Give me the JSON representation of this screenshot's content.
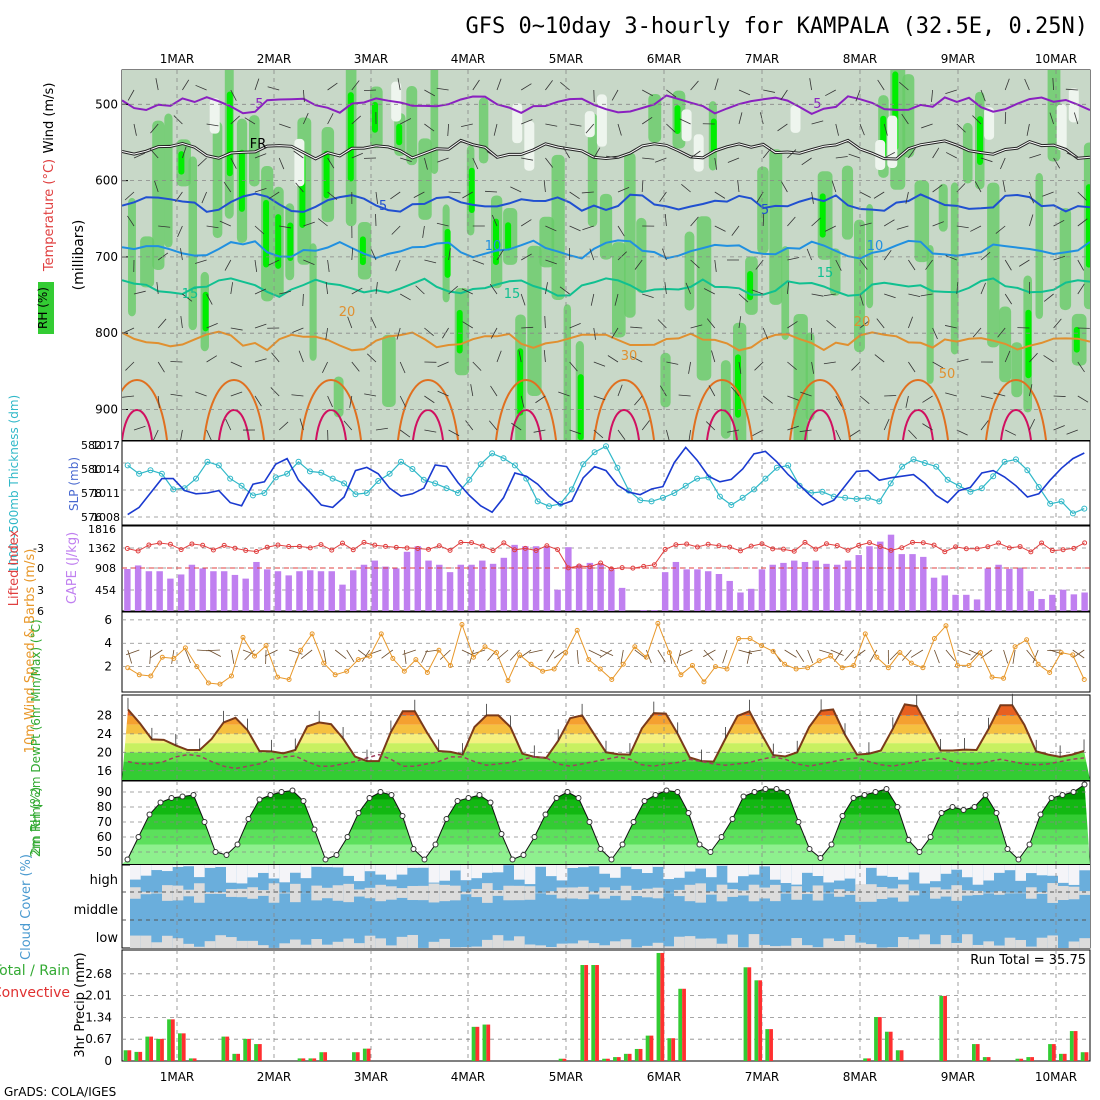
{
  "title": "GFS 0~10day 3-hourly for KAMPALA (32.5E, 0.25N)",
  "footer": "GrADS: COLA/IGES",
  "dates": [
    "1MAR",
    "2MAR",
    "3MAR",
    "4MAR",
    "5MAR",
    "6MAR",
    "7MAR",
    "8MAR",
    "9MAR",
    "10MAR"
  ],
  "colors": {
    "rh_green": "#33cc33",
    "temp_orange": "#f5a030",
    "cape_purple": "#c080f0",
    "cloud_blue": "#6aaedc",
    "rain_red": "#ff3030",
    "rain_green": "#33cc33"
  },
  "chart_data": [
    {
      "type": "heatmap",
      "panel": "upper-air",
      "ylabel_left": "Wind (m/s)",
      "ylabel_temp": "Temperature (°C)",
      "ylabel_rh": "RH (%)",
      "ylabel_axis": "(millibars)",
      "y_ticks": [
        500,
        600,
        700,
        800,
        900
      ],
      "ylim": [
        940,
        455
      ],
      "freezing_label": "FR",
      "isotherms": [
        {
          "label": "-5",
          "color": "#8a20c0",
          "level": 500
        },
        {
          "label": "FR",
          "color": "#222222",
          "level": 560
        },
        {
          "label": "5",
          "color": "#2050d0",
          "level": 630
        },
        {
          "label": "10",
          "color": "#2090e0",
          "level": 690
        },
        {
          "label": "15",
          "color": "#10c090",
          "level": 740
        },
        {
          "label": "20",
          "color": "#e09030",
          "level": 810
        }
      ],
      "contour_labels": [
        "-5",
        "5",
        "10",
        "15",
        "20",
        "30",
        "50"
      ]
    },
    {
      "type": "line",
      "panel": "thickness-slp",
      "ylabel_left": "1000~500mb Thickness (dm)",
      "ylabel_right": "SLP (mb)",
      "left_ticks": [
        576,
        578,
        580,
        582
      ],
      "right_ticks": [
        1008,
        1011,
        1014,
        1017
      ],
      "series": [
        {
          "name": "Thickness",
          "color": "#30b8c8",
          "values": [
            580.3,
            579.6,
            579.9,
            579.6,
            578.3,
            578.4,
            579.2,
            580.6,
            580.3,
            579.2,
            578.6,
            577.8,
            578.0,
            579.3,
            579.6,
            580.6,
            579.8,
            579.7,
            579.2,
            578.8,
            577.9,
            578.0,
            579.0,
            579.6,
            580.6,
            580.0,
            579.1,
            578.8,
            578.4,
            578.0,
            579.1,
            580.4,
            581.3,
            580.9,
            580.3,
            579.2,
            577.3,
            576.9,
            577.1,
            578.3,
            580.4,
            581.4,
            581.9,
            580.1,
            578.2,
            577.4,
            577.3,
            577.6,
            578.0,
            578.6,
            579.2,
            579.3,
            577.7,
            577.0,
            577.6,
            578.3,
            579.2,
            580.1,
            580.3,
            578.6,
            578.0,
            578.1,
            577.7,
            577.6,
            577.5,
            577.6,
            577.3,
            578.8,
            580.2,
            580.8,
            580.5,
            580.2,
            579.1,
            578.6,
            578.1,
            578.4,
            579.4,
            580.6,
            580.8,
            579.9,
            578.5,
            577.1,
            577.3,
            576.3,
            576.7
          ]
        },
        {
          "name": "SLP",
          "color": "#1a3ad0",
          "values": [
            1008.3,
            1009.2,
            1011.0,
            1012.8,
            1012.8,
            1011.3,
            1010.9,
            1011.0,
            1011.3,
            1009.8,
            1009.4,
            1012.1,
            1012.4,
            1014.6,
            1015.3,
            1012.6,
            1011.1,
            1009.5,
            1009.2,
            1010.5,
            1013.8,
            1014.2,
            1013.4,
            1011.6,
            1010.6,
            1010.9,
            1011.6,
            1014.5,
            1014.3,
            1012.3,
            1010.7,
            1009.4,
            1008.6,
            1010.4,
            1013.5,
            1013.1,
            1012.1,
            1010.6,
            1009.5,
            1010.0,
            1012.9,
            1014.3,
            1013.8,
            1012.0,
            1011.1,
            1010.8,
            1011.5,
            1011.8,
            1014.8,
            1016.7,
            1015.1,
            1013.1,
            1012.4,
            1012.7,
            1014.0,
            1015.9,
            1016.2,
            1014.9,
            1013.3,
            1012.0,
            1010.6,
            1009.5,
            1010.1,
            1011.9,
            1013.7,
            1013.8,
            1012.6,
            1012.9,
            1013.1,
            1013.3,
            1012.2,
            1010.7,
            1009.8,
            1011.3,
            1011.7,
            1013.5,
            1013.8,
            1013.0,
            1011.9,
            1010.5,
            1010.9,
            1012.6,
            1014.1,
            1015.3,
            1016.0
          ]
        }
      ]
    },
    {
      "type": "bar",
      "panel": "cape-lifted-index",
      "ylabel_left": "Lifted Index",
      "ylabel_right": "CAPE (J/kg)",
      "left_ticks": [
        "-3",
        "0",
        "3",
        "6"
      ],
      "right_ticks": [
        454,
        908,
        1362,
        1816
      ],
      "cape_values": [
        908,
        985,
        860,
        860,
        700,
        790,
        1000,
        920,
        860,
        860,
        780,
        700,
        1060,
        900,
        860,
        770,
        860,
        880,
        860,
        860,
        570,
        880,
        1000,
        1090,
        960,
        920,
        1280,
        1400,
        1090,
        1000,
        840,
        1000,
        1000,
        1090,
        1020,
        1150,
        1430,
        1400,
        1400,
        1400,
        460,
        1380,
        1000,
        1040,
        1020,
        900,
        500,
        0,
        20,
        20,
        840,
        1060,
        900,
        900,
        860,
        800,
        650,
        400,
        480,
        900,
        1000,
        1040,
        1090,
        1060,
        1090,
        1020,
        1000,
        1090,
        1210,
        1400,
        1500,
        1650,
        1230,
        1230,
        1170,
        720,
        770,
        350,
        350,
        250,
        920,
        1000,
        910,
        920,
        430,
        260,
        350,
        460,
        360,
        400
      ]
    },
    {
      "type": "line",
      "panel": "10m-wind",
      "ylabel": "10m Wind Speed & Barbs (m/s)",
      "y_ticks": [
        2,
        4,
        6
      ],
      "ylim": [
        0,
        6.5
      ],
      "series": [
        {
          "name": "Speed",
          "color": "#e8982a",
          "values": [
            1.9,
            1.3,
            1.2,
            2.8,
            2.7,
            3.6,
            2.0,
            0.6,
            0.5,
            1.2,
            4.5,
            2.9,
            3.8,
            1.1,
            0.9,
            3.4,
            4.8,
            2.3,
            1.3,
            1.6,
            2.6,
            2.9,
            4.8,
            2.7,
            1.6,
            2.6,
            1.5,
            3.4,
            2.1,
            5.6,
            2.8,
            3.7,
            3.2,
            0.8,
            3.0,
            2.2,
            1.6,
            1.8,
            3.2,
            5.1,
            2.6,
            1.8,
            0.9,
            2.2,
            3.7,
            2.8,
            5.7,
            3.2,
            1.3,
            2.1,
            0.7,
            2.0,
            1.8,
            4.4,
            4.4,
            3.8,
            3.3,
            2.2,
            1.8,
            1.9,
            2.5,
            2.9,
            1.9,
            2.1,
            4.8,
            2.8,
            1.9,
            3.2,
            2.3,
            1.9,
            4.4,
            5.5,
            2.1,
            2.1,
            3.2,
            1.1,
            1.0,
            3.7,
            4.3,
            2.2,
            1.5,
            3.2,
            3.0,
            0.9
          ]
        }
      ]
    },
    {
      "type": "area",
      "panel": "2m-temp",
      "ylabel": "2m Temp 2m DewPt (6hr Min/Max) (°C)",
      "y_ticks": [
        16,
        20,
        24,
        28
      ],
      "ylim": [
        14,
        32
      ],
      "series": [
        {
          "name": "Temp",
          "color": "#7a3a1a",
          "values": [
            29.3,
            26.3,
            22.8,
            22.7,
            21.5,
            20.5,
            20.5,
            22.9,
            26.5,
            27.5,
            24.8,
            20.3,
            20.2,
            19.8,
            20.5,
            25.6,
            26.5,
            26.1,
            23.0,
            19.1,
            18.1,
            18.1,
            24.4,
            28.9,
            28.9,
            24.4,
            20.3,
            20.1,
            19.5,
            25.5,
            28.0,
            28.0,
            25.5,
            19.7,
            19.0,
            18.8,
            22.5,
            27.4,
            28.0,
            24.0,
            20.0,
            19.6,
            19.5,
            25.2,
            28.5,
            28.4,
            24.0,
            18.9,
            18.1,
            18.0,
            23.0,
            27.9,
            28.9,
            24.0,
            19.4,
            19.1,
            20.0,
            25.5,
            29.0,
            29.3,
            23.8,
            19.5,
            19.7,
            20.4,
            25.1,
            30.4,
            30.0,
            25.2,
            20.4,
            20.4,
            20.6,
            20.5,
            25.0,
            30.2,
            30.2,
            26.0,
            20.2,
            19.5,
            19.0,
            19.5,
            20.3
          ]
        },
        {
          "name": "DewPt",
          "color": "#a04060",
          "values": [
            18.0,
            17.5,
            17.5,
            18.0,
            19.0,
            19.5,
            19.2,
            18.0,
            17.0,
            16.5,
            17.0,
            17.5,
            18.5,
            19.0,
            19.2,
            18.0,
            17.0,
            17.0,
            17.5,
            18.0,
            18.8,
            19.5,
            18.5,
            17.0,
            17.0,
            17.5,
            18.0,
            19.0,
            19.0,
            18.0,
            17.2,
            17.5,
            17.8,
            18.5,
            19.0,
            18.8,
            17.5,
            17.0,
            17.5,
            18.0,
            18.5,
            19.0,
            18.5,
            17.3,
            17.0,
            17.5,
            17.8,
            18.5,
            18.0,
            17.5,
            17.2,
            17.5,
            17.8,
            18.5,
            19.0,
            18.5,
            17.5,
            17.0,
            17.5,
            18.0,
            18.5,
            18.8,
            18.0,
            17.3,
            17.0,
            17.5,
            18.0,
            18.5,
            18.8,
            18.0,
            17.5,
            17.5,
            18.0,
            18.5,
            18.0,
            17.5,
            17.3,
            17.5,
            18.0,
            18.5,
            18.8
          ]
        }
      ]
    },
    {
      "type": "area",
      "panel": "2m-rh",
      "ylabel": "2m RH (%)",
      "y_ticks": [
        50,
        60,
        70,
        80,
        90
      ],
      "ylim": [
        42,
        96
      ],
      "series": [
        {
          "name": "RH",
          "color": "#00aa00",
          "values": [
            45,
            60,
            75,
            83,
            86,
            87,
            88,
            70,
            50,
            48,
            55,
            72,
            85,
            88,
            90,
            91,
            84,
            65,
            45,
            48,
            60,
            76,
            86,
            90,
            88,
            74,
            52,
            45,
            55,
            72,
            84,
            86,
            88,
            83,
            62,
            45,
            48,
            60,
            75,
            86,
            90,
            86,
            70,
            52,
            45,
            55,
            70,
            84,
            88,
            91,
            90,
            76,
            55,
            50,
            60,
            72,
            87,
            90,
            92,
            92,
            90,
            70,
            52,
            46,
            55,
            74,
            86,
            88,
            90,
            92,
            80,
            58,
            50,
            60,
            76,
            80,
            78,
            80,
            88,
            76,
            52,
            45,
            55,
            75,
            86,
            88,
            90,
            95
          ]
        }
      ]
    },
    {
      "type": "heatmap",
      "panel": "cloud-cover",
      "ylabel": "Cloud Cover (%)",
      "levels": [
        "high",
        "middle",
        "low"
      ]
    },
    {
      "type": "bar",
      "panel": "3hr-precip",
      "ylabel": "3hr Precip (mm)",
      "legend_total": "Total / Rain",
      "legend_conv": "Convective",
      "run_total": "Run Total = 35.75",
      "y_ticks": [
        "0",
        "0.67",
        "1.34",
        "2.01",
        "2.68"
      ],
      "ylim": [
        0,
        3.35
      ],
      "values": [
        0.33,
        0.28,
        0.75,
        0.68,
        1.28,
        0.85,
        0.08,
        0,
        0,
        0.75,
        0.22,
        0.68,
        0.52,
        0,
        0,
        0,
        0.08,
        0.08,
        0.27,
        0,
        0,
        0.27,
        0.38,
        0,
        0,
        0,
        0,
        0,
        0,
        0,
        0,
        0,
        1.05,
        1.12,
        0,
        0,
        0,
        0,
        0,
        0,
        0.07,
        0,
        2.95,
        2.95,
        0.07,
        0.12,
        0.22,
        0.37,
        0.78,
        3.32,
        0.7,
        2.22,
        0,
        0,
        0,
        0,
        0,
        2.88,
        2.48,
        0.98,
        0,
        0,
        0,
        0,
        0,
        0,
        0,
        0,
        0.08,
        1.35,
        0.9,
        0.33,
        0,
        0,
        0,
        2.0,
        0,
        0,
        0.52,
        0.12,
        0,
        0,
        0.07,
        0.12,
        0,
        0.52,
        0.22,
        0.92,
        0.27
      ]
    }
  ]
}
